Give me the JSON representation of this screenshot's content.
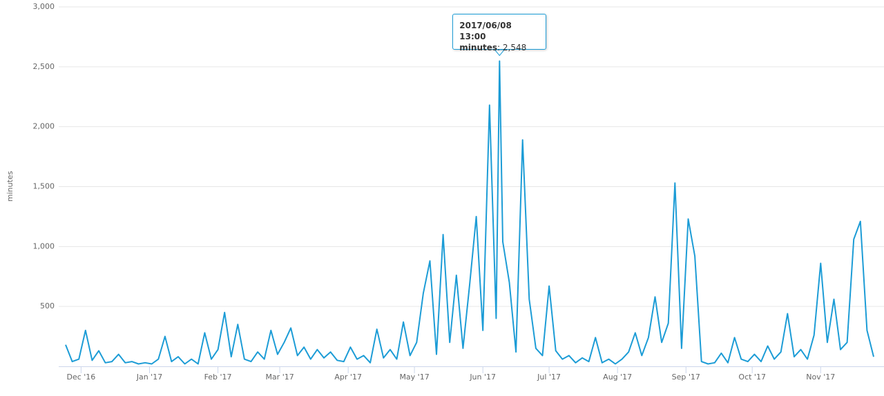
{
  "chart_data": {
    "type": "line",
    "y_label": "minutes",
    "x": [
      "2016/11/24",
      "2016/11/27",
      "2016/11/30",
      "2016/12/03",
      "2016/12/06",
      "2016/12/09",
      "2016/12/12",
      "2016/12/15",
      "2016/12/18",
      "2016/12/21",
      "2016/12/24",
      "2016/12/27",
      "2016/12/30",
      "2017/01/02",
      "2017/01/05",
      "2017/01/08",
      "2017/01/11",
      "2017/01/14",
      "2017/01/17",
      "2017/01/20",
      "2017/01/23",
      "2017/01/26",
      "2017/01/29",
      "2017/02/01",
      "2017/02/04",
      "2017/02/07",
      "2017/02/10",
      "2017/02/13",
      "2017/02/16",
      "2017/02/19",
      "2017/02/22",
      "2017/02/25",
      "2017/02/28",
      "2017/03/03",
      "2017/03/06",
      "2017/03/09",
      "2017/03/12",
      "2017/03/15",
      "2017/03/18",
      "2017/03/21",
      "2017/03/24",
      "2017/03/27",
      "2017/03/30",
      "2017/04/02",
      "2017/04/05",
      "2017/04/08",
      "2017/04/11",
      "2017/04/14",
      "2017/04/17",
      "2017/04/20",
      "2017/04/23",
      "2017/04/26",
      "2017/04/29",
      "2017/05/02",
      "2017/05/05",
      "2017/05/08",
      "2017/05/11",
      "2017/05/14",
      "2017/05/17",
      "2017/05/20",
      "2017/05/23",
      "2017/05/26",
      "2017/05/29",
      "2017/06/01",
      "2017/06/04",
      "2017/06/07",
      "2017/06/08 13:00",
      "2017/06/10",
      "2017/06/13",
      "2017/06/16",
      "2017/06/19",
      "2017/06/22",
      "2017/06/25",
      "2017/06/28",
      "2017/07/01",
      "2017/07/04",
      "2017/07/07",
      "2017/07/10",
      "2017/07/13",
      "2017/07/16",
      "2017/07/19",
      "2017/07/22",
      "2017/07/25",
      "2017/07/28",
      "2017/07/31",
      "2017/08/03",
      "2017/08/06",
      "2017/08/09",
      "2017/08/12",
      "2017/08/15",
      "2017/08/18",
      "2017/08/21",
      "2017/08/24",
      "2017/08/27",
      "2017/08/30",
      "2017/09/02",
      "2017/09/05",
      "2017/09/08",
      "2017/09/11",
      "2017/09/14",
      "2017/09/17",
      "2017/09/20",
      "2017/09/23",
      "2017/09/26",
      "2017/09/29",
      "2017/10/02",
      "2017/10/05",
      "2017/10/08",
      "2017/10/11",
      "2017/10/14",
      "2017/10/17",
      "2017/10/20",
      "2017/10/23",
      "2017/10/26",
      "2017/10/29",
      "2017/11/01",
      "2017/11/04",
      "2017/11/07",
      "2017/11/10",
      "2017/11/13",
      "2017/11/16",
      "2017/11/19",
      "2017/11/22",
      "2017/11/25"
    ],
    "series": [
      {
        "name": "minutes",
        "color": "#1c9cd6",
        "values": [
          180,
          40,
          60,
          300,
          50,
          130,
          30,
          40,
          100,
          30,
          40,
          20,
          30,
          20,
          60,
          250,
          40,
          80,
          20,
          60,
          20,
          280,
          60,
          140,
          450,
          80,
          350,
          60,
          40,
          120,
          60,
          300,
          100,
          200,
          320,
          90,
          160,
          60,
          140,
          70,
          120,
          50,
          40,
          160,
          60,
          90,
          30,
          310,
          70,
          140,
          60,
          370,
          90,
          200,
          610,
          880,
          100,
          1100,
          200,
          760,
          150,
          680,
          1250,
          300,
          2180,
          400,
          2548,
          1040,
          700,
          120,
          1890,
          560,
          150,
          90,
          670,
          130,
          60,
          90,
          30,
          70,
          40,
          240,
          30,
          60,
          20,
          60,
          120,
          280,
          90,
          240,
          580,
          200,
          360,
          1530,
          150,
          1230,
          920,
          40,
          20,
          30,
          110,
          30,
          240,
          60,
          40,
          100,
          40,
          170,
          60,
          120,
          440,
          80,
          140,
          60,
          260,
          860,
          200,
          560,
          140,
          200,
          1060,
          1210,
          300,
          80
        ]
      }
    ],
    "xlim": [
      "2016/11/24",
      "2017/11/25"
    ],
    "xticks": [
      {
        "value": "2016/12/01",
        "label": "Dec '16"
      },
      {
        "value": "2017/01/01",
        "label": "Jan '17"
      },
      {
        "value": "2017/02/01",
        "label": "Feb '17"
      },
      {
        "value": "2017/03/01",
        "label": "Mar '17"
      },
      {
        "value": "2017/04/01",
        "label": "Apr '17"
      },
      {
        "value": "2017/05/01",
        "label": "May '17"
      },
      {
        "value": "2017/06/01",
        "label": "Jun '17"
      },
      {
        "value": "2017/07/01",
        "label": "Jul '17"
      },
      {
        "value": "2017/08/01",
        "label": "Aug '17"
      },
      {
        "value": "2017/09/01",
        "label": "Sep '17"
      },
      {
        "value": "2017/10/01",
        "label": "Oct '17"
      },
      {
        "value": "2017/11/01",
        "label": "Nov '17"
      }
    ],
    "ylim": [
      0,
      3000
    ],
    "yticks": [
      500,
      {
        "value": 1000,
        "label": "1,000"
      },
      {
        "value": 1500,
        "label": "1,500"
      },
      {
        "value": 2000,
        "label": "2,000"
      },
      {
        "value": 2500,
        "label": "2,500"
      },
      {
        "value": 3000,
        "label": "3,000"
      }
    ],
    "grid": true,
    "tooltip": {
      "label": "2,548"
    }
  }
}
